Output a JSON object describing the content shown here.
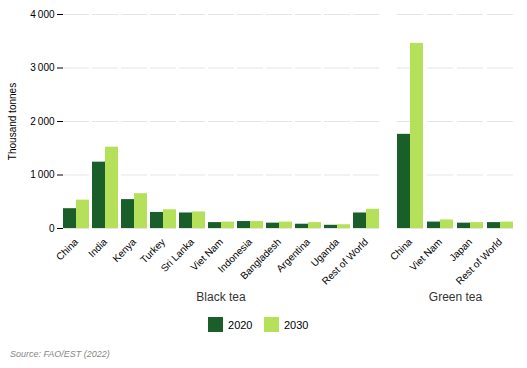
{
  "chart_data": [
    {
      "type": "bar",
      "title": "Black tea",
      "categories": [
        "China",
        "India",
        "Kenya",
        "Turkey",
        "Sri Lanka",
        "Viet Nam",
        "Indonesia",
        "Bangladesh",
        "Argentina",
        "Uganda",
        "Rest of World"
      ],
      "series": [
        {
          "name": "2020",
          "color": "#1a5e2a",
          "values": [
            370,
            1240,
            540,
            300,
            290,
            110,
            130,
            100,
            80,
            60,
            290
          ]
        },
        {
          "name": "2030",
          "color": "#b5e05a",
          "values": [
            530,
            1520,
            650,
            350,
            310,
            120,
            130,
            120,
            110,
            70,
            360
          ]
        }
      ],
      "ylabel": "Thousand tonnes",
      "ylim": [
        0,
        4000
      ],
      "yticks": [
        0,
        {
          "value": 1000,
          "label": "1 000"
        },
        {
          "value": 2000,
          "label": "2 000"
        },
        {
          "value": 3000,
          "label": "3 000"
        },
        {
          "value": 4000,
          "label": "4 000"
        }
      ],
      "grid": true,
      "legend": "bottom",
      "annotations": [
        "Source: FAO/EST (2022)"
      ]
    },
    {
      "type": "bar",
      "title": "Green tea",
      "categories": [
        "China",
        "Viet Nam",
        "Japan",
        "Rest of World"
      ],
      "series": [
        {
          "name": "2020",
          "color": "#1a5e2a",
          "values": [
            1760,
            120,
            100,
            110
          ]
        },
        {
          "name": "2030",
          "color": "#b5e05a",
          "values": [
            3460,
            160,
            110,
            120
          ]
        }
      ],
      "ylim": [
        0,
        4000
      ],
      "yticks": [
        0,
        {
          "value": 1000,
          "label": "1 000"
        },
        {
          "value": 2000,
          "label": "2 000"
        },
        {
          "value": 3000,
          "label": "3 000"
        },
        {
          "value": 4000,
          "label": "4 000"
        }
      ],
      "grid": true,
      "tick_labels": "x"
    }
  ]
}
